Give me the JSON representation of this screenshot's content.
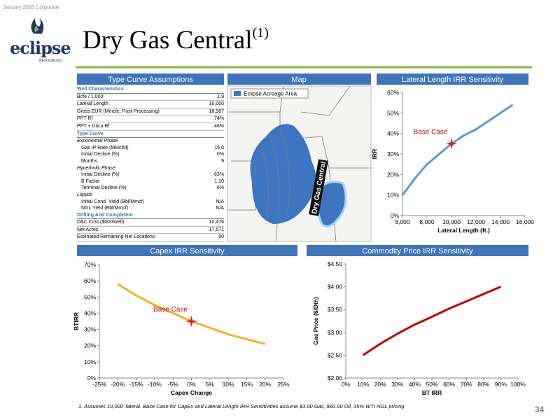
{
  "header": {
    "corner": "January 2016 Corporate",
    "logo": "eclipse",
    "logo_sub": "RESOURCES",
    "title": "Dry Gas Central",
    "title_sup": "(1)"
  },
  "table": {
    "title": "Type Curve Assumptions",
    "sections": [
      {
        "heading": "Well Characteristics",
        "rows": [
          [
            "Bcfe / 1,000'",
            "1.9"
          ],
          [
            "Lateral Length",
            "10,000"
          ],
          [
            "Gross EUR (Mmcfe, Post-Processing)",
            "18,987"
          ],
          [
            "PPT Rf",
            "74%"
          ],
          [
            "PPT + Utica Rf",
            "48%"
          ]
        ]
      },
      {
        "heading": "Type Curve",
        "groups": [
          {
            "heading": "Exponential Phase",
            "rows": [
              [
                "Gas IP Rate (MMcf/d)",
                "15.0"
              ],
              [
                "Initial Decline (%)",
                "0%"
              ],
              [
                "Months",
                "9"
              ]
            ]
          },
          {
            "heading": "Hyperbolic Phase",
            "rows": [
              [
                "Initial Decline (%)",
                "63%"
              ],
              [
                "B Factor",
                "1.20"
              ],
              [
                "Terminal Decline (%)",
                "6%"
              ]
            ]
          },
          {
            "heading": "Liquids",
            "rows": [
              [
                "Initial Cond. Yield (Bbl/Mmcf)",
                "N/A"
              ],
              [
                "NGL Yield (Bbl/Mmcf)",
                "N/A"
              ]
            ]
          }
        ]
      },
      {
        "heading": "Drilling And Completion",
        "rows": [
          [
            "D&C Cost ($000/well)",
            "10,476"
          ],
          [
            "Net Acres",
            "17,671"
          ],
          [
            "Estimated Remaining Net Locations",
            "80"
          ]
        ]
      }
    ]
  },
  "map": {
    "title": "Map",
    "legend": "Eclipse Acreage Area",
    "label": "Dry Gas Central"
  },
  "chart_data": [
    {
      "type": "line",
      "title": "Lateral Length IRR Sensitivity",
      "x_label": "Lateral Length (ft.)",
      "y_label": "IRR",
      "x": [
        6000,
        7000,
        8000,
        9000,
        10000,
        11000,
        12000,
        13000,
        14000,
        15000
      ],
      "series": [
        {
          "color": "#5b9bd5",
          "values": [
            10,
            18,
            25,
            30,
            35,
            39,
            42,
            46,
            50,
            54
          ]
        }
      ],
      "xlim": [
        6000,
        16000
      ],
      "ylim": [
        0,
        60
      ],
      "xticks": [
        {
          "value": 6000,
          "label": "6,000"
        },
        {
          "value": 8000,
          "label": "8,000"
        },
        {
          "value": 10000,
          "label": "10,000"
        },
        {
          "value": 12000,
          "label": "12,000"
        },
        {
          "value": 14000,
          "label": "14,000"
        },
        {
          "value": 16000,
          "label": "16,000"
        }
      ],
      "yticks": [
        {
          "value": 0,
          "label": "0%"
        },
        {
          "value": 10,
          "label": "10%"
        },
        {
          "value": 20,
          "label": "20%"
        },
        {
          "value": 30,
          "label": "30%"
        },
        {
          "value": 40,
          "label": "40%"
        },
        {
          "value": 50,
          "label": "50%"
        },
        {
          "value": 60,
          "label": "60%"
        }
      ],
      "grid": false,
      "annotations": [
        {
          "text": "Base Case",
          "x": 10000,
          "y": 35
        }
      ]
    },
    {
      "type": "line",
      "title": "Capex IRR Sensitivity",
      "x_label": "Capex Change",
      "y_label": "BTIRR",
      "x": [
        -20,
        -15,
        -10,
        -5,
        0,
        5,
        10,
        15,
        20
      ],
      "series": [
        {
          "color": "#f0b323",
          "values": [
            58,
            51,
            45,
            40,
            35,
            31,
            27,
            24,
            21
          ]
        }
      ],
      "xlim": [
        -25,
        25
      ],
      "ylim": [
        0,
        70
      ],
      "xticks": [
        {
          "value": -25,
          "label": "-25%"
        },
        {
          "value": -20,
          "label": "-20%"
        },
        {
          "value": -15,
          "label": "-15%"
        },
        {
          "value": -10,
          "label": "-10%"
        },
        {
          "value": -5,
          "label": "-5%"
        },
        {
          "value": 0,
          "label": "0%"
        },
        {
          "value": 5,
          "label": "5%"
        },
        {
          "value": 10,
          "label": "10%"
        },
        {
          "value": 15,
          "label": "15%"
        },
        {
          "value": 20,
          "label": "20%"
        },
        {
          "value": 25,
          "label": "25%"
        }
      ],
      "yticks": [
        {
          "value": 0,
          "label": "0%"
        },
        {
          "value": 10,
          "label": "10%"
        },
        {
          "value": 20,
          "label": "20%"
        },
        {
          "value": 30,
          "label": "30%"
        },
        {
          "value": 40,
          "label": "40%"
        },
        {
          "value": 50,
          "label": "50%"
        },
        {
          "value": 60,
          "label": "60%"
        },
        {
          "value": 70,
          "label": "70%"
        }
      ],
      "grid": false,
      "annotations": [
        {
          "text": "Base Case",
          "x": 0,
          "y": 35
        }
      ]
    },
    {
      "type": "line",
      "title": "Commodity Price IRR Sensitivity",
      "x_label": "BT IRR",
      "y_label": "Gas Price ($/Dth)",
      "x": [
        10,
        20,
        30,
        40,
        50,
        60,
        70,
        80,
        90
      ],
      "series": [
        {
          "color": "#c00000",
          "values": [
            2.5,
            2.75,
            2.97,
            3.17,
            3.34,
            3.52,
            3.68,
            3.84,
            4.0
          ]
        }
      ],
      "xlim": [
        0,
        100
      ],
      "ylim": [
        2.0,
        4.5
      ],
      "xticks": [
        {
          "value": 0,
          "label": "0%"
        },
        {
          "value": 10,
          "label": "10%"
        },
        {
          "value": 20,
          "label": "20%"
        },
        {
          "value": 30,
          "label": "30%"
        },
        {
          "value": 40,
          "label": "40%"
        },
        {
          "value": 50,
          "label": "50%"
        },
        {
          "value": 60,
          "label": "60%"
        },
        {
          "value": 70,
          "label": "70%"
        },
        {
          "value": 80,
          "label": "80%"
        },
        {
          "value": 90,
          "label": "90%"
        },
        {
          "value": 100,
          "label": "100%"
        }
      ],
      "yticks": [
        {
          "value": 2.0,
          "label": "$2.00"
        },
        {
          "value": 2.5,
          "label": "$2.50"
        },
        {
          "value": 3.0,
          "label": "$3.00"
        },
        {
          "value": 3.5,
          "label": "$3.50"
        },
        {
          "value": 4.0,
          "label": "$4.00"
        },
        {
          "value": 4.5,
          "label": "$4.50"
        }
      ],
      "grid": false,
      "annotations": []
    }
  ],
  "footnote": "1.  Assumes 10,000' lateral. Base Case for CapEx and Lateral Length IRR Sensitivities assume $3.00 Gas, $60.00 Oil, 35% WTI NGL pricing",
  "page_number": "34"
}
